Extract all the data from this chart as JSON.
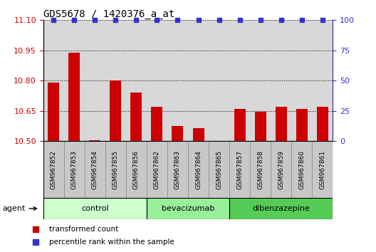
{
  "title": "GDS5678 / 1420376_a_at",
  "samples": [
    "GSM967852",
    "GSM967853",
    "GSM967854",
    "GSM967855",
    "GSM967856",
    "GSM967862",
    "GSM967863",
    "GSM967864",
    "GSM967865",
    "GSM967857",
    "GSM967858",
    "GSM967859",
    "GSM967860",
    "GSM967861"
  ],
  "bar_values": [
    10.79,
    10.94,
    10.505,
    10.8,
    10.74,
    10.67,
    10.575,
    10.565,
    10.502,
    10.66,
    10.645,
    10.67,
    10.66,
    10.67
  ],
  "percentile_values": [
    100,
    100,
    100,
    100,
    100,
    100,
    100,
    100,
    100,
    100,
    100,
    100,
    100,
    100
  ],
  "bar_color": "#cc0000",
  "percentile_color": "#3333cc",
  "ylim_left": [
    10.5,
    11.1
  ],
  "ylim_right": [
    0,
    100
  ],
  "yticks_left": [
    10.5,
    10.65,
    10.8,
    10.95,
    11.1
  ],
  "yticks_right": [
    0,
    25,
    50,
    75,
    100
  ],
  "groups": [
    {
      "label": "control",
      "start": 0,
      "end": 5,
      "color": "#ccffcc"
    },
    {
      "label": "bevacizumab",
      "start": 5,
      "end": 9,
      "color": "#99ee99"
    },
    {
      "label": "dibenzazepine",
      "start": 9,
      "end": 14,
      "color": "#55cc55"
    }
  ],
  "agent_label": "agent",
  "legend_bar_label": "transformed count",
  "legend_pct_label": "percentile rank within the sample",
  "background_color": "#ffffff",
  "plot_bg_color": "#d8d8d8",
  "xtick_bg_color": "#c8c8c8",
  "bar_width": 0.55
}
